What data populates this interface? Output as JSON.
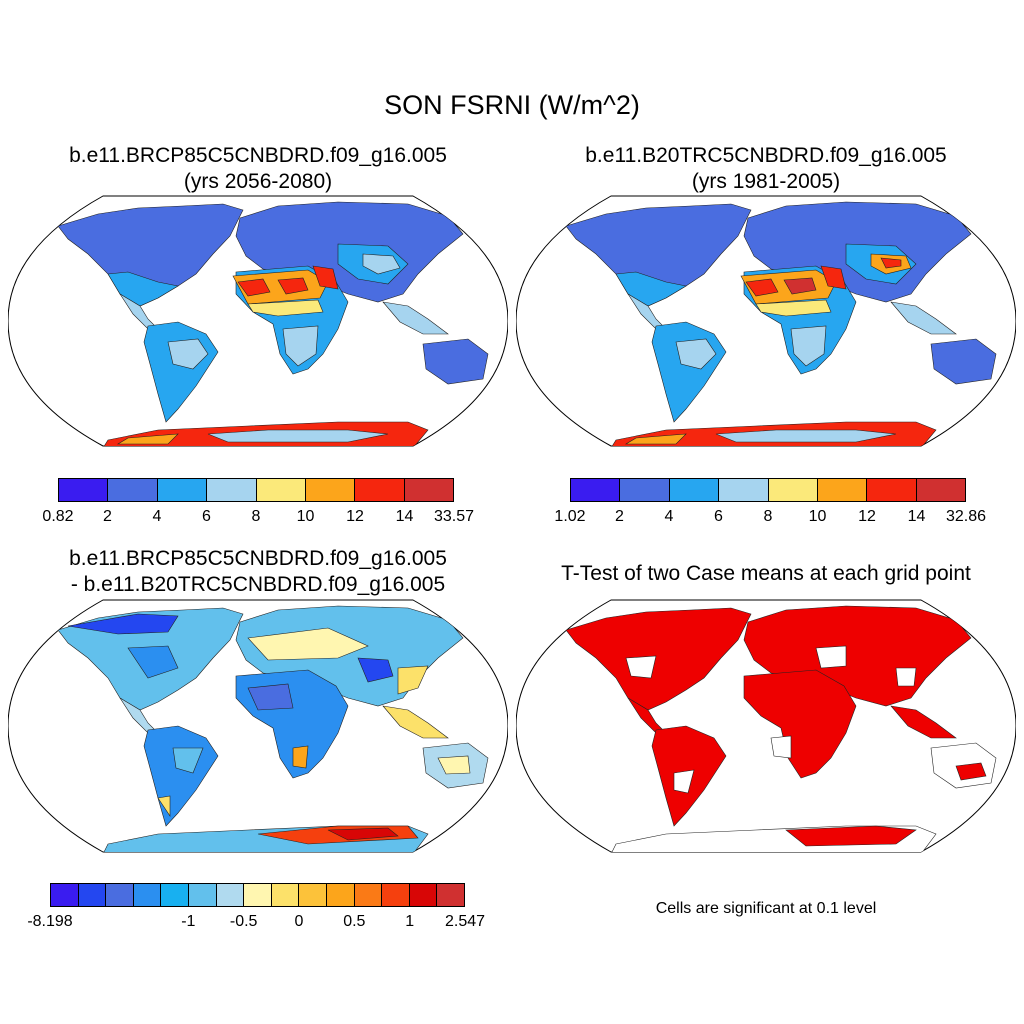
{
  "title": "SON FSRNI (W/m^2)",
  "panels": {
    "p1": {
      "title1": "b.e11.BRCP85C5CNBDRD.f09_g16.005",
      "title2": "(yrs 2056-2080)"
    },
    "p2": {
      "title1": "b.e11.B20TRC5CNBDRD.f09_g16.005",
      "title2": "(yrs 1981-2005)"
    },
    "p3": {
      "title1": "b.e11.BRCP85C5CNBDRD.f09_g16.005",
      "title2": "- b.e11.B20TRC5CNBDRD.f09_g16.005"
    },
    "p4": {
      "title1": "T-Test of two Case means at each grid point",
      "note": "Cells are significant at 0.1 level"
    }
  },
  "colorbars": {
    "cb1": {
      "colors": [
        "#3a1cf0",
        "#4a6de0",
        "#27a6f0",
        "#a6d4ef",
        "#fbe97a",
        "#fca51b",
        "#f5260e",
        "#d03030"
      ],
      "labels": [
        "0.82",
        "2",
        "4",
        "6",
        "8",
        "10",
        "12",
        "14",
        "33.57"
      ]
    },
    "cb2": {
      "colors": [
        "#3a1cf0",
        "#4a6de0",
        "#27a6f0",
        "#a6d4ef",
        "#fbe97a",
        "#fca51b",
        "#f5260e",
        "#d03030"
      ],
      "labels": [
        "1.02",
        "2",
        "4",
        "6",
        "8",
        "10",
        "12",
        "14",
        "32.86"
      ]
    },
    "cb3": {
      "colors": [
        "#3a1cf0",
        "#2447f0",
        "#4a6de0",
        "#2b8ff0",
        "#18b0f0",
        "#62c0ec",
        "#b0daef",
        "#fff6b0",
        "#fce16a",
        "#fcc23a",
        "#fca51b",
        "#fa7a16",
        "#f5400e",
        "#d80606",
        "#d03030"
      ],
      "labels": [
        "-8.198",
        "-1",
        "-0.5",
        "0",
        "0.5",
        "1",
        "2.547"
      ]
    }
  },
  "colors": {
    "ocean": "#ffffff",
    "coast": "#000000",
    "significant": "#ee0000"
  }
}
